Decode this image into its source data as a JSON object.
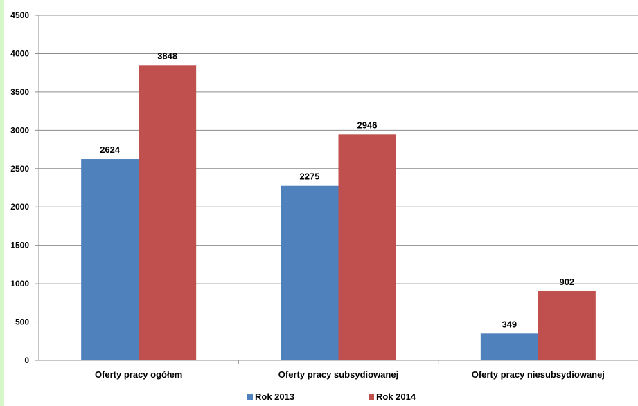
{
  "chart_data": {
    "type": "bar",
    "categories": [
      "Oferty pracy ogółem",
      "Oferty pracy subsydiowanej",
      "Oferty pracy niesubsydiowanej"
    ],
    "series": [
      {
        "name": "Rok 2013",
        "values": [
          2624,
          2275,
          349
        ],
        "color": "#4f81bd"
      },
      {
        "name": "Rok 2014",
        "values": [
          3848,
          2946,
          902
        ],
        "color": "#c0504d"
      }
    ],
    "ylim": [
      0,
      4500
    ],
    "yticks": [
      0,
      500,
      1000,
      1500,
      2000,
      2500,
      3000,
      3500,
      4000,
      4500
    ],
    "grid": true,
    "legend_position": "bottom",
    "title": "",
    "xlabel": "",
    "ylabel": ""
  }
}
